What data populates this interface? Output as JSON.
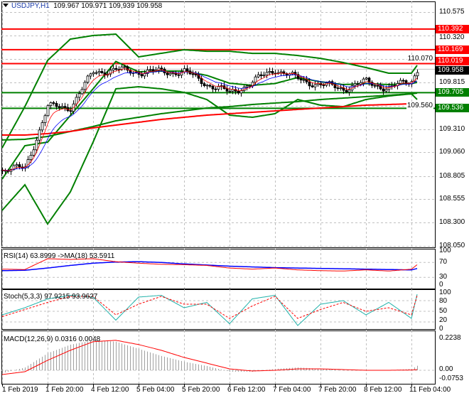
{
  "header": {
    "symbol": "USDJPY,H1",
    "ohlc": "109.967 109.971 109,939 109.958"
  },
  "price_axis": {
    "ticks": [
      "110.575",
      "110.320",
      "110.070",
      "109.815",
      "109.560",
      "109.310",
      "109.060",
      "108.805",
      "108.555",
      "108.300",
      "108.050"
    ]
  },
  "level_tags": [
    {
      "label": "110.392",
      "value": 110.392,
      "color": "#ff0000"
    },
    {
      "label": "110.169",
      "value": 110.169,
      "color": "#ff0000"
    },
    {
      "label": "110.019",
      "value": 110.019,
      "color": "#ff0000"
    },
    {
      "label": "109.958",
      "value": 109.958,
      "color": "#000000"
    },
    {
      "label": "109.705",
      "value": 109.705,
      "color": "#008000"
    },
    {
      "label": "109.536",
      "value": 109.536,
      "color": "#008000"
    }
  ],
  "time_axis": {
    "ticks": [
      "1 Feb 2019",
      "1 Feb 20:00",
      "4 Feb 12:00",
      "5 Feb 04:00",
      "5 Feb 20:00",
      "6 Feb 12:00",
      "7 Feb 04:00",
      "7 Feb 20:00",
      "8 Feb 12:00",
      "11 Feb 04:00"
    ]
  },
  "rsi": {
    "label": "RSI(14) 63.8999  ->MA(18) 53.5911",
    "ticks": [
      "100",
      "70",
      "30",
      "0"
    ]
  },
  "stoch": {
    "label": "Stoch(5,3,3) 97.9215 93.9627",
    "ticks": [
      "100",
      "80",
      "50",
      "20",
      "0"
    ]
  },
  "macd": {
    "label": "MACD(12,26,9) 0.0316 0.0048",
    "ticks": [
      "0.2238",
      "0.00",
      "-0.0753"
    ]
  },
  "chart_data": {
    "type": "candlestick",
    "title": "USDJPY,H1",
    "ylim": [
      108.05,
      110.575
    ],
    "grid": true,
    "times": [
      "1 Feb 04:00",
      "1 Feb 12:00",
      "1 Feb 20:00",
      "4 Feb 04:00",
      "4 Feb 12:00",
      "4 Feb 20:00",
      "5 Feb 04:00",
      "5 Feb 12:00",
      "5 Feb 20:00",
      "6 Feb 04:00",
      "6 Feb 12:00",
      "6 Feb 20:00",
      "7 Feb 04:00",
      "7 Feb 12:00",
      "7 Feb 20:00",
      "8 Feb 04:00",
      "8 Feb 12:00",
      "8 Feb 20:00",
      "11 Feb 04:00",
      "11 Feb 06:00"
    ],
    "close": [
      108.87,
      108.89,
      109.55,
      109.55,
      109.93,
      109.95,
      109.93,
      109.93,
      109.93,
      109.8,
      109.7,
      109.82,
      109.96,
      109.85,
      109.79,
      109.75,
      109.82,
      109.75,
      109.84,
      109.958
    ],
    "bollinger_upper": [
      109.109,
      109.554,
      110.053,
      110.283,
      110.322,
      110.337,
      110.091,
      110.13,
      110.168,
      110.152,
      110.152,
      110.129,
      110.129,
      110.106,
      110.075,
      110.03,
      109.976,
      109.915,
      109.915,
      110.0
    ],
    "bollinger_lower": [
      108.434,
      108.71,
      108.288,
      108.633,
      109.171,
      109.746,
      109.769,
      109.746,
      109.708,
      109.631,
      109.462,
      109.439,
      109.478,
      109.631,
      109.57,
      109.554,
      109.631,
      109.669,
      109.692,
      109.631
    ],
    "ma_slow_red": [
      109.247,
      109.247,
      109.263,
      109.286,
      109.324,
      109.355,
      109.385,
      109.416,
      109.439,
      109.462,
      109.478,
      109.493,
      109.508,
      109.524,
      109.539,
      109.554,
      109.57,
      109.577,
      109.585,
      109.593
    ],
    "ma_slow_green": [
      109.194,
      109.201,
      109.232,
      109.286,
      109.339,
      109.401,
      109.439,
      109.478,
      109.508,
      109.539,
      109.554,
      109.577,
      109.593,
      109.608,
      109.631,
      109.646,
      109.662,
      109.677,
      109.692,
      109.7
    ],
    "horizontal_levels": [
      110.392,
      110.169,
      110.019,
      109.705,
      109.536
    ],
    "rsi": [
      52,
      51,
      80,
      78,
      80,
      72,
      68,
      65,
      64,
      62,
      55,
      52,
      55,
      50,
      48,
      47,
      50,
      47,
      52,
      63.8999
    ],
    "rsi_ma": [
      48,
      49,
      55,
      62,
      68,
      71,
      72,
      70,
      66,
      63,
      60,
      58,
      56,
      55,
      54,
      53,
      52,
      51,
      50,
      53.5911
    ],
    "stoch_k": [
      40,
      60,
      85,
      95,
      90,
      25,
      90,
      95,
      60,
      75,
      15,
      85,
      95,
      10,
      70,
      80,
      40,
      75,
      30,
      97.9215
    ],
    "stoch_d": [
      35,
      55,
      75,
      92,
      92,
      40,
      70,
      92,
      70,
      70,
      30,
      65,
      92,
      30,
      55,
      75,
      50,
      60,
      40,
      93.9627
    ],
    "macd_hist": [
      -0.02,
      0.02,
      0.12,
      0.18,
      0.21,
      0.2,
      0.15,
      0.1,
      0.06,
      0.03,
      -0.01,
      -0.01,
      0.01,
      0.02,
      0.01,
      0.0,
      0.0,
      0.0,
      0.01,
      0.0316
    ],
    "macd_signal": [
      -0.03,
      -0.01,
      0.07,
      0.14,
      0.2,
      0.21,
      0.18,
      0.14,
      0.09,
      0.05,
      0.01,
      -0.005,
      0.0,
      0.01,
      0.01,
      0.005,
      0.0,
      0.0,
      0.002,
      0.0048
    ]
  }
}
